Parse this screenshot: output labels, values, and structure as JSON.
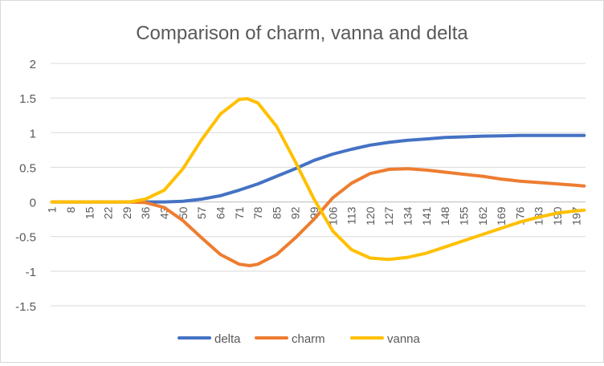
{
  "chart_data": {
    "type": "line",
    "title": "Comparison of charm, vanna and delta",
    "xlabel": "",
    "ylabel": "",
    "ylim": [
      -1.5,
      2
    ],
    "yticks": [
      -1.5,
      -1,
      -0.5,
      0,
      0.5,
      1,
      1.5,
      2
    ],
    "ytick_labels": [
      "-1.5",
      "-1",
      "-0.5",
      "0",
      "0.5",
      "1",
      "1.5",
      "2"
    ],
    "x_range": [
      1,
      200
    ],
    "xtick_labels": [
      "1",
      "8",
      "15",
      "22",
      "29",
      "36",
      "43",
      "50",
      "57",
      "64",
      "71",
      "78",
      "85",
      "92",
      "99",
      "106",
      "113",
      "120",
      "127",
      "134",
      "141",
      "148",
      "155",
      "162",
      "169",
      "176",
      "183",
      "190",
      "197"
    ],
    "grid": "horizontal",
    "legend_position": "bottom",
    "series": [
      {
        "name": "delta",
        "color": "#4472C4",
        "points": [
          [
            1,
            0
          ],
          [
            30,
            0
          ],
          [
            36,
            0
          ],
          [
            43,
            0.0
          ],
          [
            50,
            0.01
          ],
          [
            57,
            0.04
          ],
          [
            64,
            0.09
          ],
          [
            71,
            0.17
          ],
          [
            78,
            0.26
          ],
          [
            85,
            0.37
          ],
          [
            92,
            0.48
          ],
          [
            99,
            0.6
          ],
          [
            106,
            0.69
          ],
          [
            113,
            0.76
          ],
          [
            120,
            0.82
          ],
          [
            127,
            0.86
          ],
          [
            134,
            0.89
          ],
          [
            141,
            0.91
          ],
          [
            148,
            0.93
          ],
          [
            155,
            0.94
          ],
          [
            162,
            0.95
          ],
          [
            169,
            0.955
          ],
          [
            176,
            0.96
          ],
          [
            183,
            0.96
          ],
          [
            190,
            0.96
          ],
          [
            197,
            0.96
          ],
          [
            200,
            0.96
          ]
        ]
      },
      {
        "name": "charm",
        "color": "#ED7D31",
        "points": [
          [
            1,
            0
          ],
          [
            30,
            0
          ],
          [
            36,
            -0.01
          ],
          [
            43,
            -0.08
          ],
          [
            50,
            -0.27
          ],
          [
            57,
            -0.52
          ],
          [
            64,
            -0.76
          ],
          [
            71,
            -0.9
          ],
          [
            75,
            -0.92
          ],
          [
            78,
            -0.9
          ],
          [
            85,
            -0.76
          ],
          [
            92,
            -0.52
          ],
          [
            99,
            -0.25
          ],
          [
            106,
            0.06
          ],
          [
            113,
            0.27
          ],
          [
            120,
            0.41
          ],
          [
            127,
            0.47
          ],
          [
            134,
            0.48
          ],
          [
            141,
            0.46
          ],
          [
            148,
            0.43
          ],
          [
            155,
            0.4
          ],
          [
            162,
            0.37
          ],
          [
            169,
            0.33
          ],
          [
            176,
            0.3
          ],
          [
            183,
            0.28
          ],
          [
            190,
            0.26
          ],
          [
            197,
            0.24
          ],
          [
            200,
            0.23
          ]
        ]
      },
      {
        "name": "vanna",
        "color": "#FFC000",
        "points": [
          [
            1,
            0
          ],
          [
            30,
            0
          ],
          [
            36,
            0.04
          ],
          [
            43,
            0.17
          ],
          [
            50,
            0.48
          ],
          [
            57,
            0.9
          ],
          [
            64,
            1.27
          ],
          [
            71,
            1.48
          ],
          [
            74,
            1.49
          ],
          [
            78,
            1.43
          ],
          [
            85,
            1.09
          ],
          [
            92,
            0.58
          ],
          [
            99,
            0.04
          ],
          [
            106,
            -0.42
          ],
          [
            113,
            -0.69
          ],
          [
            120,
            -0.81
          ],
          [
            127,
            -0.83
          ],
          [
            134,
            -0.8
          ],
          [
            141,
            -0.74
          ],
          [
            148,
            -0.65
          ],
          [
            155,
            -0.56
          ],
          [
            162,
            -0.47
          ],
          [
            169,
            -0.38
          ],
          [
            176,
            -0.29
          ],
          [
            183,
            -0.22
          ],
          [
            190,
            -0.16
          ],
          [
            197,
            -0.13
          ],
          [
            200,
            -0.12
          ]
        ]
      }
    ]
  }
}
